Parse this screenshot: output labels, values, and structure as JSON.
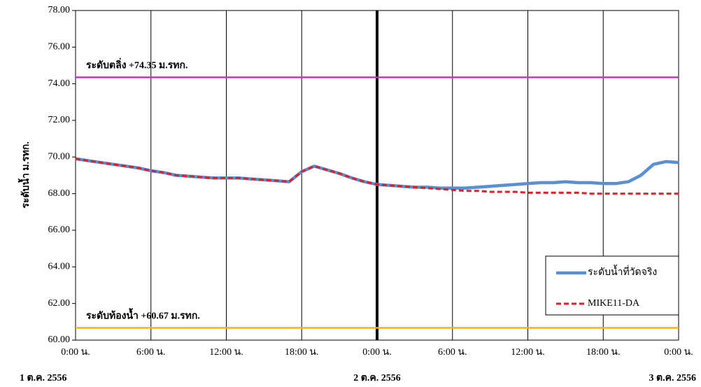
{
  "chart_data": {
    "type": "line",
    "y_label": "ระดับน้ำ  ม.รทก.",
    "x": [
      0,
      1,
      2,
      3,
      4,
      5,
      6,
      7,
      8,
      9,
      10,
      11,
      12,
      13,
      14,
      15,
      16,
      17,
      18,
      19,
      20,
      21,
      22,
      23,
      24,
      25,
      26,
      27,
      28,
      29,
      30,
      31,
      32,
      33,
      34,
      35,
      36,
      37,
      38,
      39,
      40,
      41,
      42,
      43,
      44,
      45,
      46,
      47,
      48
    ],
    "xlim": [
      0,
      48
    ],
    "xticks": [
      {
        "value": 0,
        "label": "0:00 น."
      },
      {
        "value": 6,
        "label": "6:00 น."
      },
      {
        "value": 12,
        "label": "12:00 น."
      },
      {
        "value": 18,
        "label": "18:00 น."
      },
      {
        "value": 24,
        "label": "0:00 น."
      },
      {
        "value": 30,
        "label": "6:00 น."
      },
      {
        "value": 36,
        "label": "12:00 น."
      },
      {
        "value": 42,
        "label": "18:00 น."
      },
      {
        "value": 48,
        "label": "0:00 น."
      }
    ],
    "date_labels": [
      {
        "value": 0,
        "label": "1 ต.ค. 2556"
      },
      {
        "value": 24,
        "label": "2 ต.ค. 2556"
      },
      {
        "value": 48,
        "label": "3 ต.ค. 2556"
      }
    ],
    "divider_x": 24,
    "ylim": [
      60,
      78
    ],
    "yticks": [
      {
        "value": 60,
        "label": "60.00"
      },
      {
        "value": 62,
        "label": "62.00"
      },
      {
        "value": 64,
        "label": "64.00"
      },
      {
        "value": 66,
        "label": "66.00"
      },
      {
        "value": 68,
        "label": "68.00"
      },
      {
        "value": 70,
        "label": "70.00"
      },
      {
        "value": 72,
        "label": "72.00"
      },
      {
        "value": 74,
        "label": "74.00"
      },
      {
        "value": 76,
        "label": "76.00"
      },
      {
        "value": 78,
        "label": "78.00"
      }
    ],
    "reference_lines": [
      {
        "value": 74.35,
        "label": "ระดับตลิ่ง +74.35 ม.รทก.",
        "color": "#e020e0"
      },
      {
        "value": 60.67,
        "label": "ระดับท้องน้ำ +60.67 ม.รทก.",
        "color": "#f0b800"
      }
    ],
    "legend": "lower right",
    "series": [
      {
        "name": "ระดับน้ำที่วัดจริง",
        "color": "#5b8fd4",
        "dashed": false,
        "values": [
          69.9,
          69.8,
          69.7,
          69.6,
          69.5,
          69.4,
          69.25,
          69.15,
          69.0,
          68.95,
          68.9,
          68.85,
          68.85,
          68.85,
          68.8,
          68.75,
          68.7,
          68.65,
          69.2,
          69.5,
          69.3,
          69.1,
          68.85,
          68.65,
          68.5,
          68.45,
          68.4,
          68.35,
          68.35,
          68.3,
          68.3,
          68.3,
          68.35,
          68.4,
          68.45,
          68.5,
          68.55,
          68.6,
          68.6,
          68.65,
          68.6,
          68.6,
          68.55,
          68.55,
          68.65,
          69.0,
          69.6,
          69.75,
          69.7
        ]
      },
      {
        "name": "MIKE11-DA",
        "color": "#d8232a",
        "dashed": true,
        "values": [
          69.9,
          69.8,
          69.7,
          69.6,
          69.5,
          69.4,
          69.25,
          69.15,
          69.0,
          68.95,
          68.9,
          68.85,
          68.85,
          68.85,
          68.8,
          68.75,
          68.7,
          68.65,
          69.2,
          69.5,
          69.3,
          69.1,
          68.85,
          68.65,
          68.5,
          68.45,
          68.4,
          68.35,
          68.3,
          68.25,
          68.2,
          68.15,
          68.15,
          68.1,
          68.1,
          68.1,
          68.05,
          68.05,
          68.05,
          68.05,
          68.05,
          68.0,
          68.0,
          68.0,
          68.0,
          68.0,
          68.0,
          68.0,
          68.0
        ]
      }
    ]
  }
}
